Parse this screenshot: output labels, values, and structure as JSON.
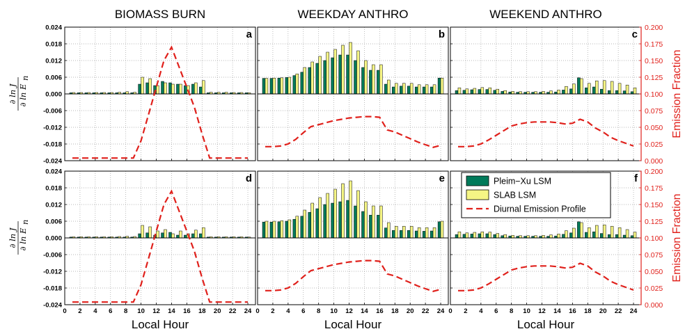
{
  "column_titles": [
    "BIOMASS BURN",
    "WEEKDAY ANTHRO",
    "WEEKEND ANTHRO"
  ],
  "panel_labels": [
    "a",
    "b",
    "c",
    "d",
    "e",
    "f"
  ],
  "xlabel": "Local Hour",
  "ylabel_left": {
    "top": "∂ ln J",
    "bottom": "∂ ln E",
    "subscript": "n"
  },
  "ylabel_right": "Emission Fraction",
  "legend": {
    "items": [
      "Pleim−Xu LSM",
      "SLAB LSM",
      "Diurnal Emission Profile"
    ]
  },
  "colors": {
    "pleim": "#007a5a",
    "slab": "#f5f585",
    "profile": "#e0201b",
    "axis_right": "#e0201b"
  },
  "chart_data": {
    "type": "bar",
    "x_ticks": [
      "0",
      "2",
      "4",
      "6",
      "8",
      "10",
      "12",
      "14",
      "16",
      "18",
      "20",
      "22",
      "24"
    ],
    "xlim": [
      0,
      25
    ],
    "y_left_ticks": [
      "0.024",
      "0.018",
      "0.012",
      "0.006",
      "0.000",
      "-0.006",
      "-0.012",
      "-0.018",
      "-0.024"
    ],
    "ylim_left": [
      -0.024,
      0.024
    ],
    "y_right_ticks": [
      "0.200",
      "0.175",
      "0.150",
      "0.125",
      "0.100",
      "0.075",
      "0.050",
      "0.025",
      "0.000"
    ],
    "ylim_right": [
      0,
      0.2
    ],
    "grid": true,
    "legend_position": "panel f, top-left",
    "hours": [
      1,
      2,
      3,
      4,
      5,
      6,
      7,
      8,
      9,
      10,
      11,
      12,
      13,
      14,
      15,
      16,
      17,
      18,
      19,
      20,
      21,
      22,
      23,
      24
    ],
    "profiles": {
      "biomass": [
        0.004,
        0.004,
        0.004,
        0.004,
        0.004,
        0.004,
        0.004,
        0.004,
        0.004,
        0.03,
        0.07,
        0.11,
        0.15,
        0.17,
        0.14,
        0.11,
        0.08,
        0.04,
        0.004,
        0.004,
        0.004,
        0.004,
        0.004,
        0.004
      ],
      "weekday": [
        0.021,
        0.021,
        0.022,
        0.025,
        0.032,
        0.042,
        0.051,
        0.054,
        0.057,
        0.06,
        0.062,
        0.064,
        0.065,
        0.066,
        0.066,
        0.065,
        0.046,
        0.043,
        0.038,
        0.033,
        0.028,
        0.024,
        0.02,
        0.023
      ],
      "weekend": [
        0.021,
        0.021,
        0.022,
        0.025,
        0.031,
        0.038,
        0.045,
        0.052,
        0.055,
        0.057,
        0.058,
        0.058,
        0.058,
        0.057,
        0.055,
        0.056,
        0.062,
        0.058,
        0.049,
        0.043,
        0.035,
        0.03,
        0.026,
        0.022
      ]
    },
    "panels": [
      {
        "id": "a",
        "profile": "biomass",
        "series": [
          {
            "name": "Pleim−Xu LSM",
            "values": [
              0.0004,
              0.0004,
              0.0004,
              0.0004,
              0.0004,
              0.0004,
              0.0004,
              0.0004,
              0.0004,
              0.0035,
              0.004,
              0.003,
              0.0045,
              0.004,
              0.0035,
              0.003,
              0.0035,
              0.0025,
              0.0004,
              0.0004,
              0.0004,
              0.0004,
              0.0004,
              0.0004
            ]
          },
          {
            "name": "SLAB LSM",
            "values": [
              0.0005,
              0.0005,
              0.0005,
              0.0005,
              0.0005,
              0.0005,
              0.0006,
              0.0008,
              0.0006,
              0.006,
              0.0055,
              0.003,
              0.004,
              0.0035,
              0.0035,
              0.003,
              0.004,
              0.0048,
              0.0006,
              0.0006,
              0.0006,
              0.0005,
              0.0005,
              0.0004
            ]
          }
        ]
      },
      {
        "id": "b",
        "profile": "weekday",
        "series": [
          {
            "name": "Pleim−Xu LSM",
            "values": [
              0.0056,
              0.0056,
              0.0057,
              0.0059,
              0.0066,
              0.0078,
              0.0095,
              0.011,
              0.012,
              0.013,
              0.014,
              0.014,
              0.012,
              0.0095,
              0.0085,
              0.0085,
              0.0035,
              0.0025,
              0.0028,
              0.0028,
              0.0025,
              0.0025,
              0.0025,
              0.0057
            ]
          },
          {
            "name": "SLAB LSM",
            "values": [
              0.0056,
              0.0057,
              0.0058,
              0.006,
              0.0072,
              0.0095,
              0.0115,
              0.0135,
              0.015,
              0.016,
              0.0175,
              0.0185,
              0.0155,
              0.012,
              0.0105,
              0.0105,
              0.005,
              0.0038,
              0.0038,
              0.0038,
              0.0033,
              0.0033,
              0.0033,
              0.0057
            ]
          }
        ]
      },
      {
        "id": "c",
        "profile": "weekend",
        "series": [
          {
            "name": "Pleim−Xu LSM",
            "values": [
              0.0012,
              0.0013,
              0.0015,
              0.0016,
              0.0016,
              0.0013,
              0.0009,
              0.0007,
              0.0006,
              0.0006,
              0.0006,
              0.0006,
              0.0006,
              0.0007,
              0.0014,
              0.0018,
              0.0058,
              0.0022,
              0.0025,
              0.0017,
              0.0012,
              0.0012,
              0.0011,
              0.0008
            ]
          },
          {
            "name": "SLAB LSM",
            "values": [
              0.0022,
              0.0018,
              0.002,
              0.0023,
              0.0022,
              0.0017,
              0.0012,
              0.0009,
              0.0008,
              0.0008,
              0.0008,
              0.0009,
              0.0011,
              0.0014,
              0.0027,
              0.0036,
              0.0055,
              0.0038,
              0.0047,
              0.0048,
              0.0045,
              0.0038,
              0.0032,
              0.0022
            ]
          }
        ]
      },
      {
        "id": "d",
        "profile": "biomass",
        "series": [
          {
            "name": "Pleim−Xu LSM",
            "values": [
              0.0003,
              0.0003,
              0.0003,
              0.0003,
              0.0003,
              0.0003,
              0.0003,
              0.0003,
              0.0003,
              0.0015,
              0.0018,
              0.001,
              0.0018,
              0.002,
              0.001,
              0.001,
              0.0015,
              0.0015,
              0.0003,
              0.0003,
              0.0003,
              0.0003,
              0.0003,
              0.0003
            ]
          },
          {
            "name": "SLAB LSM",
            "values": [
              0.0004,
              0.0004,
              0.0004,
              0.0004,
              0.0004,
              0.0004,
              0.0005,
              0.0006,
              0.0005,
              0.0045,
              0.004,
              0.0025,
              0.003,
              0.0015,
              0.0025,
              0.0015,
              0.0028,
              0.0037,
              0.0004,
              0.0004,
              0.0004,
              0.0004,
              0.0004,
              0.0003
            ]
          }
        ]
      },
      {
        "id": "e",
        "profile": "weekday",
        "series": [
          {
            "name": "Pleim−Xu LSM",
            "values": [
              0.0057,
              0.0057,
              0.0058,
              0.006,
              0.0067,
              0.0078,
              0.0092,
              0.0105,
              0.012,
              0.0125,
              0.013,
              0.0135,
              0.0115,
              0.0095,
              0.0082,
              0.0082,
              0.0036,
              0.0027,
              0.0027,
              0.0027,
              0.0025,
              0.0024,
              0.0025,
              0.0058
            ]
          },
          {
            "name": "SLAB LSM",
            "values": [
              0.006,
              0.006,
              0.0062,
              0.0065,
              0.0078,
              0.01,
              0.0125,
              0.0145,
              0.016,
              0.0175,
              0.0195,
              0.0205,
              0.017,
              0.013,
              0.0115,
              0.0115,
              0.0055,
              0.0042,
              0.0042,
              0.0042,
              0.0037,
              0.0037,
              0.0037,
              0.006
            ]
          }
        ]
      },
      {
        "id": "f",
        "profile": "weekend",
        "series": [
          {
            "name": "Pleim−Xu LSM",
            "values": [
              0.0012,
              0.0013,
              0.0014,
              0.0015,
              0.0015,
              0.0012,
              0.0008,
              0.0007,
              0.0006,
              0.0006,
              0.0006,
              0.0006,
              0.0006,
              0.0007,
              0.0013,
              0.0018,
              0.0058,
              0.002,
              0.0022,
              0.0016,
              0.0012,
              0.0012,
              0.001,
              0.0008
            ]
          },
          {
            "name": "SLAB LSM",
            "values": [
              0.0022,
              0.0018,
              0.002,
              0.0022,
              0.0021,
              0.0016,
              0.0012,
              0.0009,
              0.0008,
              0.0008,
              0.0008,
              0.0009,
              0.0011,
              0.0014,
              0.0026,
              0.0035,
              0.0055,
              0.0037,
              0.0045,
              0.0047,
              0.0042,
              0.0037,
              0.003,
              0.0021
            ]
          }
        ]
      }
    ]
  }
}
